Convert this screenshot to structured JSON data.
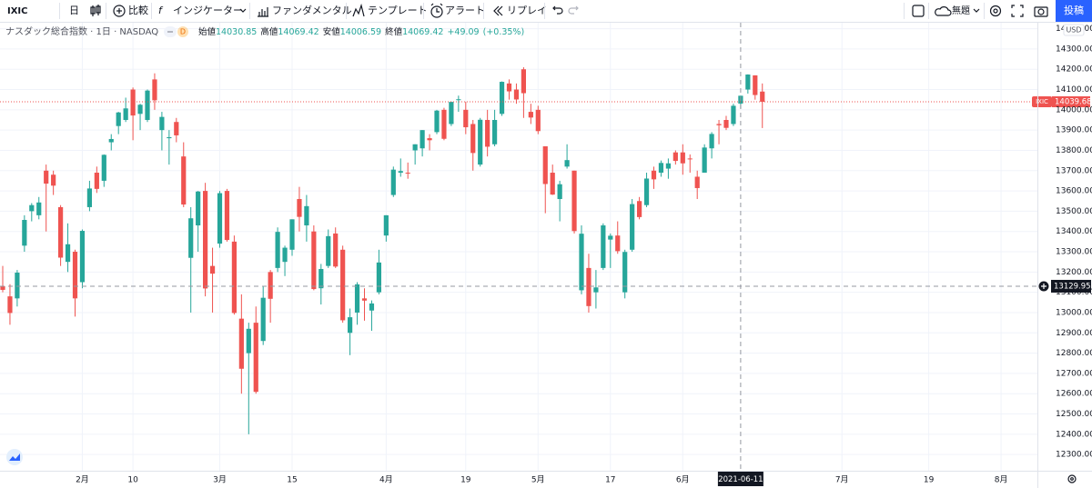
{
  "toolbar": {
    "symbol": "IXIC",
    "interval": "日",
    "compare": "比較",
    "indicators": "インジケーター",
    "fundamentals": "ファンダメンタル",
    "templates": "テンプレート",
    "alert": "アラート",
    "replay": "リプレイ",
    "layout_name": "無題",
    "publish": "投稿"
  },
  "legend": {
    "title": "ナスダック総合指数 · 1日 · NASDAQ",
    "badge": "D",
    "open_label": "始値",
    "high_label": "高値",
    "low_label": "安値",
    "close_label": "終値",
    "change": "+49.09",
    "change_pct": "(+0.35%)"
  },
  "price_axis": {
    "currency": "USD"
  },
  "chart_data": {
    "type": "candlestick",
    "up_color": "#26a69a",
    "down_color": "#ef5350",
    "grid": true,
    "x": [
      "2021-01-14",
      "2021-01-15",
      "2021-01-19",
      "2021-01-20",
      "2021-01-21",
      "2021-01-22",
      "2021-01-25",
      "2021-01-26",
      "2021-01-27",
      "2021-01-28",
      "2021-01-29",
      "2021-02-01",
      "2021-02-02",
      "2021-02-03",
      "2021-02-04",
      "2021-02-05",
      "2021-02-08",
      "2021-02-09",
      "2021-02-10",
      "2021-02-11",
      "2021-02-12",
      "2021-02-16",
      "2021-02-17",
      "2021-02-18",
      "2021-02-19",
      "2021-02-22",
      "2021-02-23",
      "2021-02-24",
      "2021-02-25",
      "2021-02-26",
      "2021-03-01",
      "2021-03-02",
      "2021-03-03",
      "2021-03-04",
      "2021-03-05",
      "2021-03-08",
      "2021-03-09",
      "2021-03-10",
      "2021-03-11",
      "2021-03-12",
      "2021-03-15",
      "2021-03-16",
      "2021-03-17",
      "2021-03-18",
      "2021-03-19",
      "2021-03-22",
      "2021-03-23",
      "2021-03-24",
      "2021-03-25",
      "2021-03-26",
      "2021-03-29",
      "2021-03-30",
      "2021-03-31",
      "2021-04-01",
      "2021-04-05",
      "2021-04-06",
      "2021-04-07",
      "2021-04-08",
      "2021-04-09",
      "2021-04-12",
      "2021-04-13",
      "2021-04-14",
      "2021-04-15",
      "2021-04-16",
      "2021-04-19",
      "2021-04-20",
      "2021-04-21",
      "2021-04-22",
      "2021-04-23",
      "2021-04-26",
      "2021-04-27",
      "2021-04-28",
      "2021-04-29",
      "2021-04-30",
      "2021-05-03",
      "2021-05-04",
      "2021-05-05",
      "2021-05-06",
      "2021-05-07",
      "2021-05-10",
      "2021-05-11",
      "2021-05-12",
      "2021-05-13",
      "2021-05-14",
      "2021-05-17",
      "2021-05-18",
      "2021-05-19",
      "2021-05-20",
      "2021-05-21",
      "2021-05-24",
      "2021-05-25",
      "2021-05-26",
      "2021-05-27",
      "2021-05-28",
      "2021-06-01",
      "2021-06-02",
      "2021-06-03",
      "2021-06-04",
      "2021-06-07",
      "2021-06-08",
      "2021-06-09",
      "2021-06-10",
      "2021-06-11",
      "2021-06-14",
      "2021-06-15",
      "2021-06-16"
    ],
    "open": [
      13130,
      13080,
      13070,
      13330,
      13500,
      13480,
      13700,
      13680,
      13520,
      13250,
      13300,
      13150,
      13520,
      13690,
      13650,
      13840,
      13920,
      13950,
      14100,
      13980,
      13950,
      14150,
      13900,
      13860,
      13940,
      13770,
      13270,
      13430,
      13600,
      13230,
      13340,
      13600,
      13350,
      12970,
      12800,
      12950,
      12860,
      13200,
      13220,
      13250,
      13310,
      13560,
      13430,
      13400,
      13120,
      13230,
      13390,
      13310,
      12900,
      13000,
      13070,
      13010,
      13100,
      13380,
      13580,
      13690,
      13690,
      13800,
      13810,
      13860,
      13890,
      14000,
      13930,
      14050,
      14000,
      13930,
      13730,
      13950,
      13830,
      13980,
      14130,
      14100,
      14200,
      13990,
      14000,
      13820,
      13690,
      13560,
      13720,
      13700,
      13110,
      13220,
      13100,
      13220,
      13360,
      13380,
      13100,
      13310,
      13550,
      13530,
      13700,
      13690,
      13710,
      13790,
      13790,
      13760,
      13670,
      13690,
      13810,
      13930,
      13950,
      13930,
      14030.85,
      14100,
      14170,
      14090
    ],
    "high": [
      13230,
      13140,
      13210,
      13480,
      13540,
      13570,
      13730,
      13700,
      13530,
      13440,
      13310,
      13410,
      13650,
      13720,
      13780,
      13880,
      13990,
      14060,
      14110,
      14030,
      14100,
      14180,
      13990,
      13900,
      13960,
      13840,
      13520,
      13600,
      13640,
      13320,
      13600,
      13610,
      13380,
      13090,
      12950,
      13030,
      13130,
      13210,
      13420,
      13330,
      13460,
      13620,
      13580,
      13430,
      13240,
      13410,
      13420,
      13330,
      13020,
      13150,
      13120,
      13060,
      13310,
      13480,
      13720,
      13760,
      13740,
      13830,
      13900,
      13880,
      14000,
      14010,
      14040,
      14070,
      14040,
      13950,
      13960,
      14000,
      14000,
      14140,
      14150,
      14130,
      14210,
      14030,
      14020,
      13820,
      13730,
      13650,
      13830,
      13700,
      13430,
      13290,
      13210,
      13440,
      13390,
      13450,
      13310,
      13560,
      13570,
      13690,
      13720,
      13750,
      13760,
      13800,
      13830,
      13780,
      13700,
      13830,
      13890,
      13950,
      13970,
      14030,
      14069.42,
      14175,
      14170,
      14130
    ],
    "low": [
      13100,
      12940,
      13030,
      13300,
      13450,
      13460,
      13400,
      13580,
      13230,
      13200,
      12980,
      13120,
      13500,
      13590,
      13620,
      13800,
      13880,
      13940,
      13850,
      13900,
      13940,
      14000,
      13800,
      13730,
      13840,
      13520,
      13000,
      13300,
      13080,
      13000,
      13320,
      13350,
      12990,
      12600,
      12400,
      12600,
      12840,
      12950,
      13200,
      13180,
      13280,
      13400,
      13350,
      13110,
      13040,
      13220,
      13220,
      12950,
      12790,
      12940,
      12960,
      12910,
      13090,
      13350,
      13570,
      13670,
      13660,
      13730,
      13770,
      13800,
      13880,
      13850,
      13920,
      13990,
      13880,
      13700,
      13720,
      13770,
      13820,
      13970,
      14050,
      14030,
      13960,
      13930,
      13880,
      13490,
      13580,
      13450,
      13710,
      13390,
      13090,
      13000,
      13020,
      13210,
      13220,
      13290,
      13070,
      13300,
      13460,
      13520,
      13610,
      13670,
      13660,
      13730,
      13680,
      13690,
      13560,
      13690,
      13760,
      13830,
      13900,
      13920,
      14006.59,
      14080,
      14050,
      13910
    ],
    "close": [
      13112,
      12998,
      13197,
      13457,
      13530,
      13543,
      13636,
      13626,
      13271,
      13337,
      13070,
      13403,
      13612,
      13610,
      13778,
      13856,
      13987,
      14007,
      13972,
      14025,
      14095,
      14047,
      13965,
      13865,
      13874,
      13533,
      13465,
      13597,
      13119,
      13192,
      13589,
      13358,
      12998,
      12723,
      12920,
      12609,
      13073,
      13068,
      13398,
      13320,
      13460,
      13472,
      13525,
      13116,
      13215,
      13377,
      13227,
      12962,
      12977,
      13139,
      13059,
      13045,
      13247,
      13480,
      13705,
      13698,
      13688,
      13830,
      13900,
      13850,
      13996,
      13857,
      14039,
      14052,
      13914,
      13787,
      13951,
      13818,
      13950,
      14138,
      14091,
      14051,
      14082,
      13962,
      13895,
      13634,
      13582,
      13633,
      13752,
      13402,
      13389,
      13032,
      13124,
      13430,
      13379,
      13303,
      13299,
      13535,
      13471,
      13661,
      13657,
      13738,
      13736,
      13748,
      13736,
      13756,
      13614,
      13814,
      13881,
      13924,
      13911,
      14020,
      14069.42,
      14174,
      14073,
      14039.68
    ],
    "ylim": [
      12220,
      14443
    ],
    "yticks": [
      {
        "value": 12300,
        "label": "12300.00"
      },
      {
        "value": 12400,
        "label": "12400.00"
      },
      {
        "value": 12500,
        "label": "12500.00"
      },
      {
        "value": 12600,
        "label": "12600.00"
      },
      {
        "value": 12700,
        "label": "12700.00"
      },
      {
        "value": 12800,
        "label": "12800.00"
      },
      {
        "value": 12900,
        "label": "12900.00"
      },
      {
        "value": 13000,
        "label": "13000.00"
      },
      {
        "value": 13100,
        "label": "13100.00"
      },
      {
        "value": 13200,
        "label": "13200.00"
      },
      {
        "value": 13300,
        "label": "13300.00"
      },
      {
        "value": 13400,
        "label": "13400.00"
      },
      {
        "value": 13500,
        "label": "13500.00"
      },
      {
        "value": 13600,
        "label": "13600.00"
      },
      {
        "value": 13700,
        "label": "13700.00"
      },
      {
        "value": 13800,
        "label": "13800.00"
      },
      {
        "value": 13900,
        "label": "13900.00"
      },
      {
        "value": 14000,
        "label": "14000.00"
      },
      {
        "value": 14100,
        "label": "14100.00"
      },
      {
        "value": 14200,
        "label": "14200.00"
      },
      {
        "value": 14300,
        "label": "14300.00"
      },
      {
        "value": 14400,
        "label": "14400.00"
      }
    ],
    "xticks": [
      {
        "value": "2021-02-01",
        "label": "2月"
      },
      {
        "value": "2021-02-10",
        "label": "10"
      },
      {
        "value": "2021-03-01",
        "label": "3月"
      },
      {
        "value": "2021-03-15",
        "label": "15"
      },
      {
        "value": "2021-04-01",
        "label": "4月"
      },
      {
        "value": "2021-04-19",
        "label": "19"
      },
      {
        "value": "2021-05-03",
        "label": "5月"
      },
      {
        "value": "2021-05-17",
        "label": "17"
      },
      {
        "value": "2021-06-01",
        "label": "6月"
      },
      {
        "value": "2021-07-01",
        "label": "7月"
      },
      {
        "value": "2021-07-19",
        "label": "19"
      },
      {
        "value": "2021-08-02",
        "label": "8月"
      }
    ],
    "crosshair": {
      "x": "2021-06-11",
      "y": 13129.95
    }
  }
}
